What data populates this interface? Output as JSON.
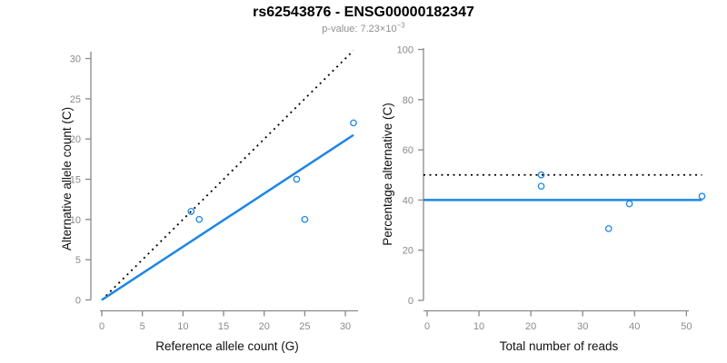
{
  "header": {
    "title": "rs62543876 - ENSG00000182347",
    "subtitle_prefix": "p-value: 7.23×10",
    "subtitle_exponent": "−3"
  },
  "colors": {
    "accent_blue": "#1E86E5",
    "reference_black": "#000000",
    "axis_gray": "#8A8A8A",
    "tick_label_gray": "#8A8A8A",
    "subtitle_gray": "#8F8F8F",
    "title_black": "#000000"
  },
  "chart_data": [
    {
      "type": "scatter",
      "name": "allele-counts-panel",
      "xlabel": "Reference allele count (G)",
      "ylabel": "Alternative allele count (C)",
      "xlim": [
        0,
        31
      ],
      "ylim": [
        0,
        30
      ],
      "xticks": [
        0,
        5,
        10,
        15,
        20,
        25,
        30
      ],
      "yticks": [
        0,
        5,
        10,
        15,
        20,
        25,
        30
      ],
      "grid": false,
      "legend": false,
      "point_color": "#1E86E5",
      "points": [
        [
          11,
          11
        ],
        [
          12,
          10
        ],
        [
          24,
          15
        ],
        [
          25,
          10
        ],
        [
          31,
          22
        ]
      ],
      "lines": [
        {
          "name": "identity-line",
          "style": "dotted",
          "color": "#000000",
          "from": [
            0,
            0
          ],
          "to": [
            31,
            31
          ]
        },
        {
          "name": "fit-line",
          "style": "solid",
          "color": "#1E86E5",
          "from": [
            0,
            0
          ],
          "to": [
            31,
            20.5
          ]
        }
      ]
    },
    {
      "type": "scatter",
      "name": "percentage-panel",
      "xlabel": "Total number of reads",
      "ylabel": "Percentage alternative (C)",
      "xlim": [
        0,
        53
      ],
      "ylim": [
        0,
        100
      ],
      "xticks": [
        0,
        10,
        20,
        30,
        40,
        50
      ],
      "yticks": [
        0,
        20,
        40,
        60,
        80,
        100
      ],
      "grid": false,
      "legend": false,
      "point_color": "#1E86E5",
      "points": [
        [
          22,
          50
        ],
        [
          22,
          45.5
        ],
        [
          35,
          28.6
        ],
        [
          39,
          38.5
        ],
        [
          53,
          41.5
        ]
      ],
      "lines": [
        {
          "name": "null-50pct-line",
          "style": "dotted",
          "color": "#000000",
          "from": [
            0,
            50
          ],
          "to": [
            53,
            50
          ]
        },
        {
          "name": "mean-pct-line",
          "style": "solid",
          "color": "#1E86E5",
          "from": [
            0,
            40
          ],
          "to": [
            53,
            40
          ]
        }
      ]
    }
  ]
}
